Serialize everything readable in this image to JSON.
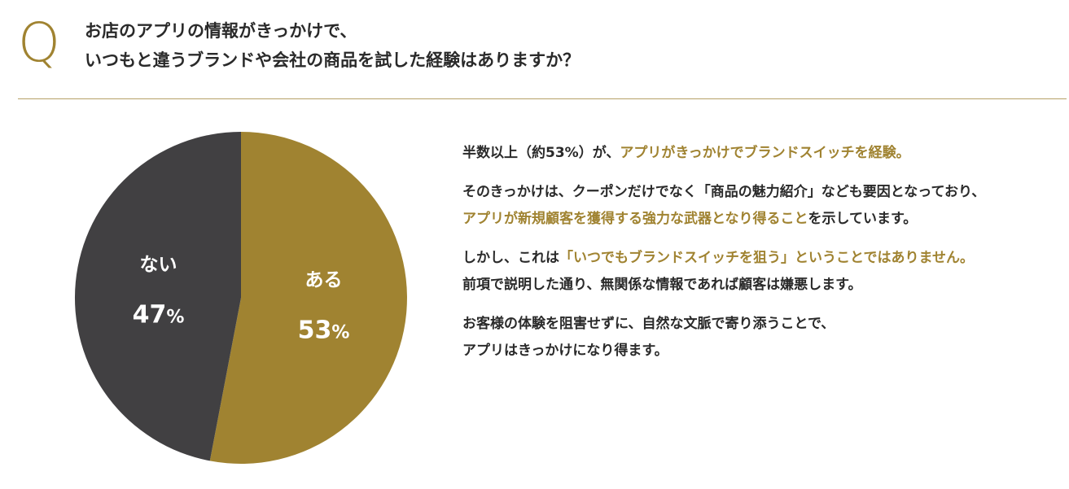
{
  "header": {
    "q_letter": "Q",
    "question_line1": "お店のアプリの情報がきっかけで、",
    "question_line2": "いつもと違うブランドや会社の商品を試した経験はありますか？"
  },
  "chart_data": {
    "type": "pie",
    "slices": [
      {
        "label": "ある",
        "value": 53,
        "display": "53",
        "unit": "%",
        "color": "#a08331"
      },
      {
        "label": "ない",
        "value": 47,
        "display": "47",
        "unit": "%",
        "color": "#414042"
      }
    ],
    "start": "12 o'clock",
    "direction": "clockwise"
  },
  "body": {
    "p1": {
      "plain": "半数以上（約53%）が、",
      "highlight": "アプリがきっかけでブランドスイッチを経験。"
    },
    "p2": {
      "line1": "そのきっかけは、クーポンだけでなく「商品の魅力紹介」なども要因となっており、",
      "line2_highlight": "アプリが新規顧客を獲得する強力な武器となり得ること",
      "line2_plain": "を示しています。"
    },
    "p3": {
      "line1_plain": "しかし、これは",
      "line1_highlight": "「いつでもブランドスイッチを狙う」ということではありません。",
      "line2": "前項で説明した通り、無関係な情報であれば顧客は嫌悪します。"
    },
    "p4": {
      "line1": "お客様の体験を阻害せずに、自然な文脈で寄り添うことで、",
      "line2": "アプリはきっかけになり得ます。"
    }
  }
}
